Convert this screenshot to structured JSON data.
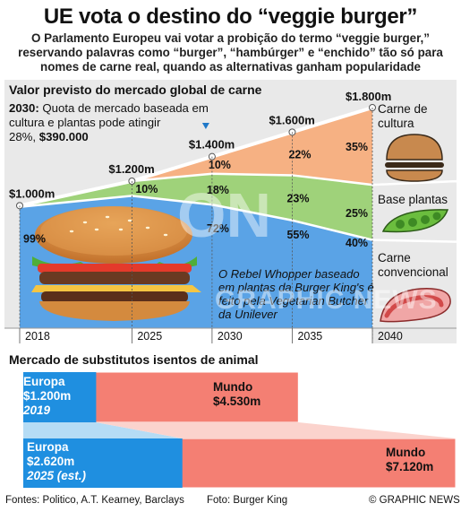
{
  "header": {
    "title": "UE vota o destino do “veggie burger”",
    "subtitle": "O Parlamento Europeu vai votar a probição do termo “veggie burger,” reservando palavras como “burger”, “hambúrger” e “enchido” tão só para nomes de carne real, quando as alternativas ganham popularidade"
  },
  "chart_data": [
    {
      "type": "area",
      "title": "Valor previsto do mercado global de carne",
      "x": [
        2018,
        2025,
        2030,
        2035,
        2040
      ],
      "x_ticks": [
        "2018",
        "2025",
        "2030",
        "2035",
        "2040"
      ],
      "total_labels": [
        "$1.000m",
        "$1.200m",
        "$1.400m",
        "$1.600m",
        "$1.800m"
      ],
      "totals": [
        1000,
        1200,
        1400,
        1600,
        1800
      ],
      "series": [
        {
          "name": "Carne convencional",
          "values": [
            99,
            90,
            72,
            55,
            40
          ],
          "labels": [
            "99%",
            "",
            "72%",
            "55%",
            "40%"
          ]
        },
        {
          "name": "Base plantas",
          "values": [
            1,
            10,
            18,
            23,
            25
          ],
          "labels": [
            "",
            "10%",
            "18%",
            "23%",
            "25%"
          ]
        },
        {
          "name": "Carne de cultura",
          "values": [
            0,
            0,
            10,
            22,
            35
          ],
          "labels": [
            "",
            "",
            "10%",
            "22%",
            "35%"
          ]
        }
      ],
      "colors": {
        "convencional": "#5aa3e6",
        "plantas": "#9fd27a",
        "cultura": "#f6b183"
      },
      "annotation_lines": [
        "2030: Quota de mercado baseada em",
        "cultura e plantas pode atingir",
        "28%, $390.000"
      ],
      "annotation_year": "2030:",
      "annotation_rest1": " Quota de mercado baseada em",
      "annotation_line2": "cultura e plantas pode atingir",
      "annotation_pct": "28%, ",
      "annotation_value": "$390.000",
      "caption": "O Rebel Whopper baseado em plantas da Burger King's é feito pela Vegetarian Butcher da Unilever"
    },
    {
      "type": "bar",
      "title": "Mercado de substitutos isentos de animal",
      "bars": [
        {
          "region": "Europa",
          "value_label": "$1.200m",
          "period": "2019",
          "europe": 1200,
          "world": 4530,
          "world_name": "Mundo",
          "world_label": "$4.530m"
        },
        {
          "region": "Europa",
          "value_label": "$2.620m",
          "period": "2025 (est.)",
          "europe": 2620,
          "world": 7120,
          "world_name": "Mundo",
          "world_label": "$7.120m"
        }
      ],
      "colors": {
        "europe": "#1f8fe0",
        "world": "#f47f73",
        "connector": "#b5dcf5"
      }
    }
  ],
  "legend": {
    "cultura": "Carne de cultura",
    "plantas": "Base plantas",
    "convencional": "Carne convencional"
  },
  "footer": {
    "sources": "Fontes: Politico, A.T. Kearney, Barclays",
    "photo": "Foto: Burger King",
    "credit": "© GRAPHIC NEWS"
  },
  "icons": {
    "cultura": "bun-icon",
    "plantas": "pea-pod-icon",
    "convencional": "steak-icon",
    "photo": "burger-photo"
  }
}
